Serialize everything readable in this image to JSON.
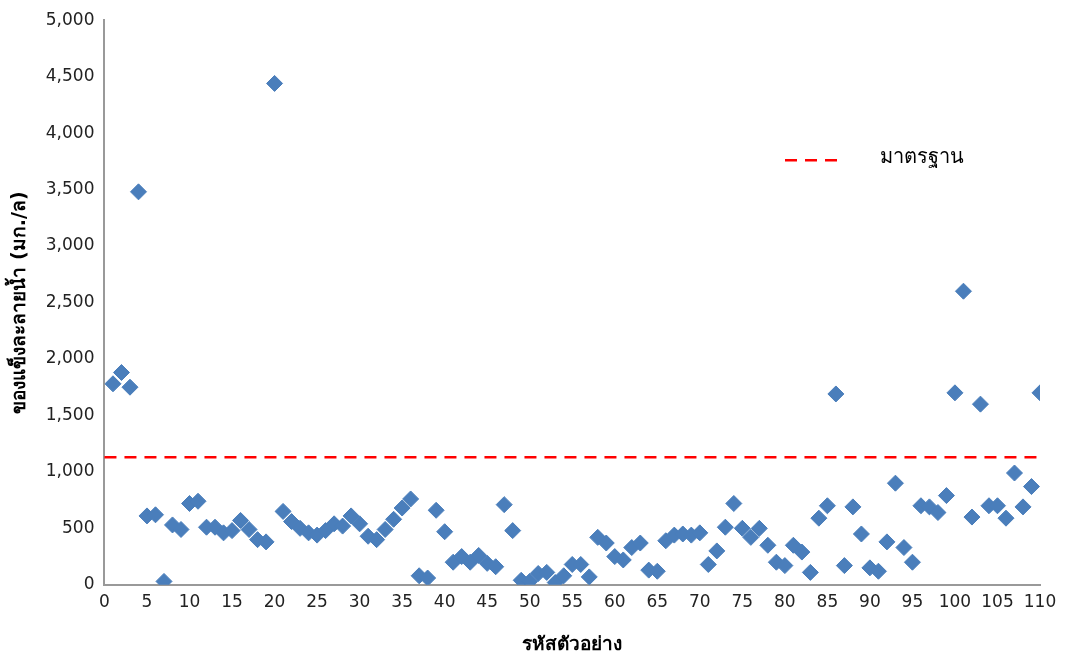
{
  "chart_data": {
    "type": "scatter",
    "xlabel": "รหัสตัวอย่าง",
    "ylabel": "ของแข็งละลายน้ำ (มก./ล)",
    "x": [
      1,
      2,
      3,
      4,
      5,
      6,
      7,
      8,
      9,
      10,
      11,
      12,
      13,
      14,
      15,
      16,
      17,
      18,
      19,
      20,
      21,
      22,
      23,
      24,
      25,
      26,
      27,
      28,
      29,
      30,
      31,
      32,
      33,
      34,
      35,
      36,
      37,
      38,
      39,
      40,
      41,
      42,
      43,
      44,
      45,
      46,
      47,
      48,
      49,
      50,
      51,
      52,
      53,
      54,
      55,
      56,
      57,
      58,
      59,
      60,
      61,
      62,
      63,
      64,
      65,
      66,
      67,
      68,
      69,
      70,
      71,
      72,
      73,
      74,
      75,
      76,
      77,
      78,
      79,
      80,
      81,
      82,
      83,
      84,
      85,
      86,
      87,
      88,
      89,
      90,
      91,
      92,
      93,
      94,
      95,
      96,
      97,
      98,
      99,
      100,
      101,
      102,
      103,
      104,
      105,
      106,
      107,
      108,
      109,
      110
    ],
    "series": [
      {
        "color": "#4a7ebb",
        "values": [
          1780,
          1880,
          1750,
          3480,
          610,
          620,
          30,
          530,
          490,
          720,
          740,
          510,
          510,
          460,
          480,
          570,
          490,
          400,
          380,
          4440,
          650,
          560,
          500,
          460,
          440,
          480,
          540,
          520,
          610,
          540,
          430,
          400,
          490,
          580,
          680,
          760,
          80,
          60,
          660,
          470,
          200,
          250,
          200,
          260,
          190,
          160,
          710,
          480,
          40,
          30,
          100,
          110,
          20,
          80,
          180,
          180,
          70,
          420,
          370,
          250,
          220,
          330,
          370,
          130,
          120,
          390,
          440,
          450,
          440,
          460,
          180,
          300,
          510,
          720,
          500,
          420,
          500,
          350,
          200,
          170,
          350,
          290,
          110,
          590,
          700,
          1690,
          170,
          690,
          450,
          150,
          120,
          380,
          900,
          330,
          200,
          700,
          690,
          640,
          790,
          1700,
          2600,
          600,
          1600,
          700,
          700,
          590,
          990,
          690,
          870,
          1700
        ]
      }
    ],
    "marker": "diamond",
    "xlim": [
      0,
      110
    ],
    "xticks": [
      0,
      5,
      10,
      15,
      20,
      25,
      30,
      35,
      40,
      45,
      50,
      55,
      60,
      65,
      70,
      75,
      80,
      85,
      90,
      95,
      100,
      105,
      110
    ],
    "ylim": [
      0,
      5000
    ],
    "yticks": [
      0,
      {
        "value": 500,
        "label": "500"
      },
      {
        "value": 1000,
        "label": "1,000"
      },
      {
        "value": 1500,
        "label": "1,500"
      },
      {
        "value": 2000,
        "label": "2,000"
      },
      {
        "value": 2500,
        "label": "2,500"
      },
      {
        "value": 3000,
        "label": "3,000"
      },
      {
        "value": 3500,
        "label": "3,500"
      },
      {
        "value": 4000,
        "label": "4,000"
      },
      {
        "value": 4500,
        "label": "4,500"
      },
      {
        "value": 5000,
        "label": "5,000"
      }
    ],
    "ref_lines": [
      {
        "axis": "y",
        "value": 1130,
        "label": "มาตรฐาน",
        "color": "#ff0000",
        "line_style": "dashed"
      }
    ],
    "legend": "top right",
    "grid": false
  }
}
